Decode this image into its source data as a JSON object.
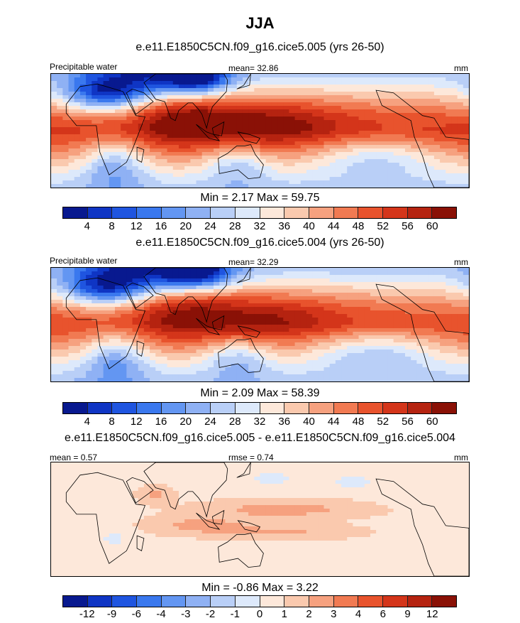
{
  "title": "JJA",
  "units": "mm",
  "colors": {
    "palette_abs": [
      "#08198f",
      "#0f35c4",
      "#1f55e0",
      "#3a78ee",
      "#6396f2",
      "#8fb1f4",
      "#b9cff7",
      "#dde9fb",
      "#fde8da",
      "#fac9ae",
      "#f6a17f",
      "#f17a52",
      "#e8532d",
      "#d4351a",
      "#b52310",
      "#8a1106"
    ],
    "palette_diff": [
      "#08198f",
      "#0f35c4",
      "#1f55e0",
      "#3a78ee",
      "#6396f2",
      "#8fb1f4",
      "#b9cff7",
      "#dde9fb",
      "#fde8da",
      "#fac9ae",
      "#f6a17f",
      "#f17a52",
      "#e8532d",
      "#d4351a",
      "#b52310",
      "#8a1106"
    ],
    "land_outline": "#000000"
  },
  "chart_data": [
    {
      "type": "heatmap",
      "title": "e.e11.E1850C5CN.f09_g16.cice5.005 (yrs 26-50)",
      "left_label": "Precipitable water",
      "stat_label": "mean=",
      "stat_value": "32.86",
      "units": "mm",
      "min_label": "Min =",
      "min_value": "2.17",
      "max_label": "Max =",
      "max_value": "59.75",
      "levels": [
        4,
        8,
        12,
        16,
        20,
        24,
        28,
        32,
        36,
        40,
        44,
        48,
        52,
        56,
        60
      ],
      "level_labels": [
        "4",
        "8",
        "12",
        "16",
        "20",
        "24",
        "28",
        "32",
        "36",
        "40",
        "44",
        "48",
        "52",
        "56",
        "60"
      ],
      "field": {
        "base": 34,
        "amp_equator": 20,
        "lat_width": 26,
        "dry_poles": -20,
        "features": [
          {
            "lon": 80,
            "lat": 20,
            "val": 14,
            "w": 30,
            "h": 18
          },
          {
            "lon": 150,
            "lat": 8,
            "val": 12,
            "w": 50,
            "h": 14
          },
          {
            "lon": 55,
            "lat": 40,
            "val": -24,
            "w": 40,
            "h": 14
          },
          {
            "lon": 15,
            "lat": 28,
            "val": -22,
            "w": 25,
            "h": 10
          },
          {
            "lon": 95,
            "lat": 42,
            "val": -26,
            "w": 20,
            "h": 10
          },
          {
            "lon": 25,
            "lat": -25,
            "val": -16,
            "w": 20,
            "h": 15
          },
          {
            "lon": 130,
            "lat": -25,
            "val": -12,
            "w": 20,
            "h": 12
          },
          {
            "lon": 250,
            "lat": -20,
            "val": -14,
            "w": 40,
            "h": 12
          }
        ]
      }
    },
    {
      "type": "heatmap",
      "title": "e.e11.E1850C5CN.f09_g16.cice5.004 (yrs 26-50)",
      "left_label": "Precipitable water",
      "stat_label": "mean=",
      "stat_value": "32.29",
      "units": "mm",
      "min_label": "Min =",
      "min_value": "2.09",
      "max_label": "Max =",
      "max_value": "58.39",
      "levels": [
        4,
        8,
        12,
        16,
        20,
        24,
        28,
        32,
        36,
        40,
        44,
        48,
        52,
        56,
        60
      ],
      "level_labels": [
        "4",
        "8",
        "12",
        "16",
        "20",
        "24",
        "28",
        "32",
        "36",
        "40",
        "44",
        "48",
        "52",
        "56",
        "60"
      ],
      "field": {
        "base": 33,
        "amp_equator": 19,
        "lat_width": 26,
        "dry_poles": -20,
        "features": [
          {
            "lon": 80,
            "lat": 20,
            "val": 13,
            "w": 30,
            "h": 18
          },
          {
            "lon": 150,
            "lat": 8,
            "val": 11,
            "w": 50,
            "h": 14
          },
          {
            "lon": 55,
            "lat": 40,
            "val": -24,
            "w": 40,
            "h": 14
          },
          {
            "lon": 15,
            "lat": 28,
            "val": -22,
            "w": 25,
            "h": 10
          },
          {
            "lon": 95,
            "lat": 42,
            "val": -26,
            "w": 20,
            "h": 10
          },
          {
            "lon": 25,
            "lat": -25,
            "val": -16,
            "w": 20,
            "h": 15
          },
          {
            "lon": 130,
            "lat": -25,
            "val": -12,
            "w": 20,
            "h": 12
          },
          {
            "lon": 250,
            "lat": -20,
            "val": -14,
            "w": 40,
            "h": 12
          }
        ]
      }
    },
    {
      "type": "heatmap",
      "title": "e.e11.E1850C5CN.f09_g16.cice5.005 - e.e11.E1850C5CN.f09_g16.cice5.004",
      "left_label": "mean =",
      "left_value": "0.57",
      "stat_label": "rmse =",
      "stat_value": "0.74",
      "units": "mm",
      "min_label": "Min =",
      "min_value": "-0.86",
      "max_label": "Max =",
      "max_value": "3.22",
      "levels": [
        -12,
        -9,
        -6,
        -4,
        -3,
        -2,
        -1,
        0,
        1,
        2,
        3,
        4,
        6,
        9,
        12
      ],
      "level_labels": [
        "-12",
        "-9",
        "-6",
        "-4",
        "-3",
        "-2",
        "-1",
        "0",
        "1",
        "2",
        "3",
        "4",
        "6",
        "9",
        "12"
      ],
      "field": {
        "base": 0.5,
        "amp_equator": 0.3,
        "lat_width": 30,
        "dry_poles": 0,
        "features": [
          {
            "lon": 100,
            "lat": -5,
            "val": 1.6,
            "w": 30,
            "h": 5
          },
          {
            "lon": 170,
            "lat": 8,
            "val": 1.8,
            "w": 45,
            "h": 5
          },
          {
            "lon": 175,
            "lat": -10,
            "val": 1.3,
            "w": 40,
            "h": 4
          },
          {
            "lon": 160,
            "lat": 32,
            "val": -1.3,
            "w": 12,
            "h": 4
          },
          {
            "lon": 230,
            "lat": 30,
            "val": -1.2,
            "w": 12,
            "h": 4
          },
          {
            "lon": 25,
            "lat": -15,
            "val": -1.2,
            "w": 8,
            "h": 6
          },
          {
            "lon": 60,
            "lat": 20,
            "val": 1.4,
            "w": 10,
            "h": 5
          }
        ]
      }
    }
  ]
}
